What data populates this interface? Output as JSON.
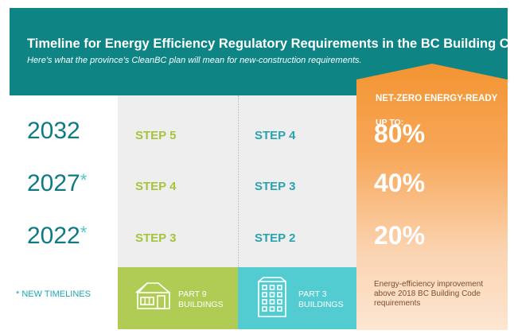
{
  "header": {
    "title": "Timeline for Energy Efficiency Regulatory Requirements in the BC Building Code",
    "subtitle": "Here's what the province's CleanBC plan will mean for new-construction requirements."
  },
  "rows": [
    {
      "year": "2032",
      "star": "",
      "part9": "STEP 5",
      "part3": "STEP 4",
      "pct": "80%"
    },
    {
      "year": "2027",
      "star": "*",
      "part9": "STEP 4",
      "part3": "STEP 3",
      "pct": "40%"
    },
    {
      "year": "2022",
      "star": "*",
      "part9": "STEP 3",
      "part3": "STEP 2",
      "pct": "20%"
    }
  ],
  "net_zero": {
    "label": "NET-ZERO ENERGY-READY",
    "up_to": "UP TO:"
  },
  "footer": {
    "new_timelines_star": "*",
    "new_timelines": "NEW TIMELINES",
    "part9_line1": "PART 9",
    "part9_line2": "BUILDINGS",
    "part3_line1": "PART 3",
    "part3_line2": "BUILDINGS",
    "note": "Energy-efficiency improvement above 2018 BC Building Code requirements"
  },
  "colors": {
    "teal": "#0e8484",
    "green": "#a4c53b",
    "cyan": "#53ccd1",
    "orange": "#f39431"
  },
  "icons": {
    "part9": "house-icon",
    "part3": "apartment-building-icon"
  }
}
